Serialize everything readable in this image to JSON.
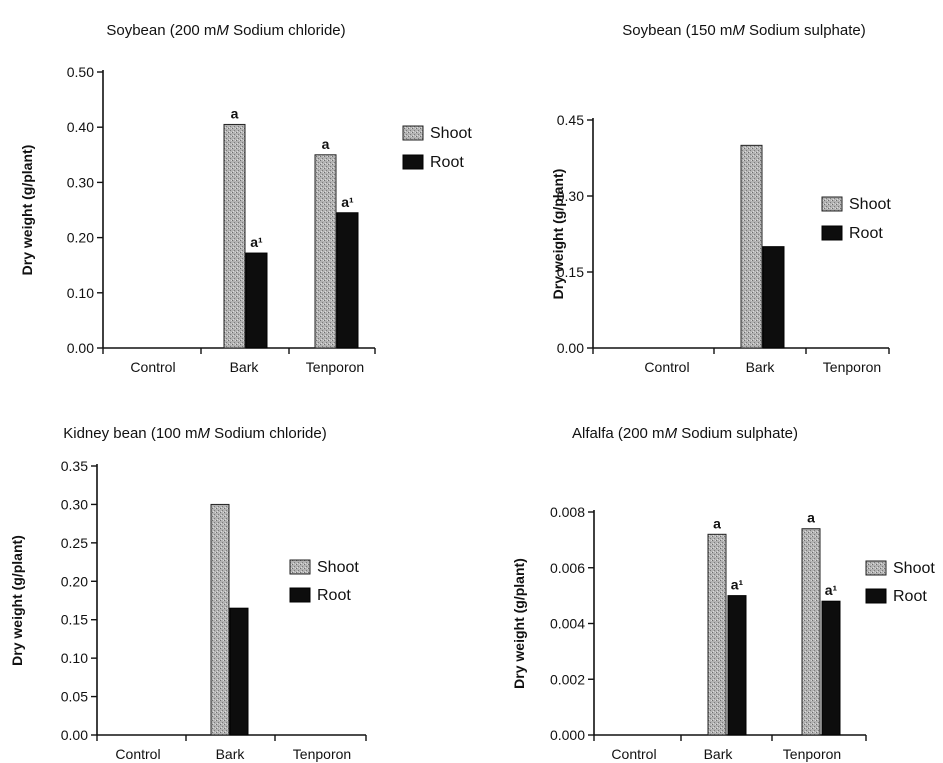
{
  "colors": {
    "shoot": "#a9a9a9",
    "root": "#0d0d0d"
  },
  "chart_data": [
    {
      "type": "bar",
      "title": [
        "Soybean (200 m",
        "M",
        " Sodium chloride)"
      ],
      "categories": [
        "Control",
        "Bark",
        "Tenporon"
      ],
      "ylabel": "Dry weight (g/plant)",
      "ylim": [
        0,
        0.5
      ],
      "yticks": [
        "0.00",
        "0.10",
        "0.20",
        "0.30",
        "0.40",
        "0.50"
      ],
      "series": [
        {
          "name": "Shoot",
          "values": [
            0,
            0.405,
            0.35
          ],
          "labels": [
            "",
            "a",
            "a"
          ]
        },
        {
          "name": "Root",
          "values": [
            0,
            0.172,
            0.245
          ],
          "labels": [
            "",
            "a¹",
            "a¹"
          ]
        }
      ],
      "legend": "right"
    },
    {
      "type": "bar",
      "title": [
        "Soybean (150 m",
        "M",
        " Sodium sulphate)"
      ],
      "categories": [
        "Control",
        "Bark",
        "Tenporon"
      ],
      "ylabel": "Dry weight (g/plant)",
      "ylim": [
        0,
        0.45
      ],
      "yticks": [
        "0.00",
        "0.15",
        "0.30",
        "0.45"
      ],
      "series": [
        {
          "name": "Shoot",
          "values": [
            0,
            0.4,
            0
          ],
          "labels": [
            "",
            "",
            ""
          ]
        },
        {
          "name": "Root",
          "values": [
            0,
            0.2,
            0
          ],
          "labels": [
            "",
            "",
            ""
          ]
        }
      ],
      "legend": "right"
    },
    {
      "type": "bar",
      "title": [
        "Kidney bean (100 m",
        "M",
        " Sodium chloride)"
      ],
      "categories": [
        "Control",
        "Bark",
        "Tenporon"
      ],
      "ylabel": "Dry weight (g/plant)",
      "ylim": [
        0,
        0.35
      ],
      "yticks": [
        "0.00",
        "0.05",
        "0.10",
        "0.15",
        "0.20",
        "0.25",
        "0.30",
        "0.35"
      ],
      "series": [
        {
          "name": "Shoot",
          "values": [
            0,
            0.3,
            0
          ],
          "labels": [
            "",
            "",
            ""
          ]
        },
        {
          "name": "Root",
          "values": [
            0,
            0.165,
            0
          ],
          "labels": [
            "",
            "",
            ""
          ]
        }
      ],
      "legend": "right"
    },
    {
      "type": "bar",
      "title": [
        "Alfalfa (200 m",
        "M",
        " Sodium sulphate)"
      ],
      "categories": [
        "Control",
        "Bark",
        "Tenporon"
      ],
      "ylabel": "Dry weight (g/plant)",
      "ylim": [
        0,
        0.008
      ],
      "yticks": [
        "0.000",
        "0.002",
        "0.004",
        "0.006",
        "0.008"
      ],
      "series": [
        {
          "name": "Shoot",
          "values": [
            0,
            0.0072,
            0.0074
          ],
          "labels": [
            "",
            "a",
            "a"
          ]
        },
        {
          "name": "Root",
          "values": [
            0,
            0.005,
            0.0048
          ],
          "labels": [
            "",
            "a¹",
            "a¹"
          ]
        }
      ],
      "legend": "right"
    }
  ]
}
